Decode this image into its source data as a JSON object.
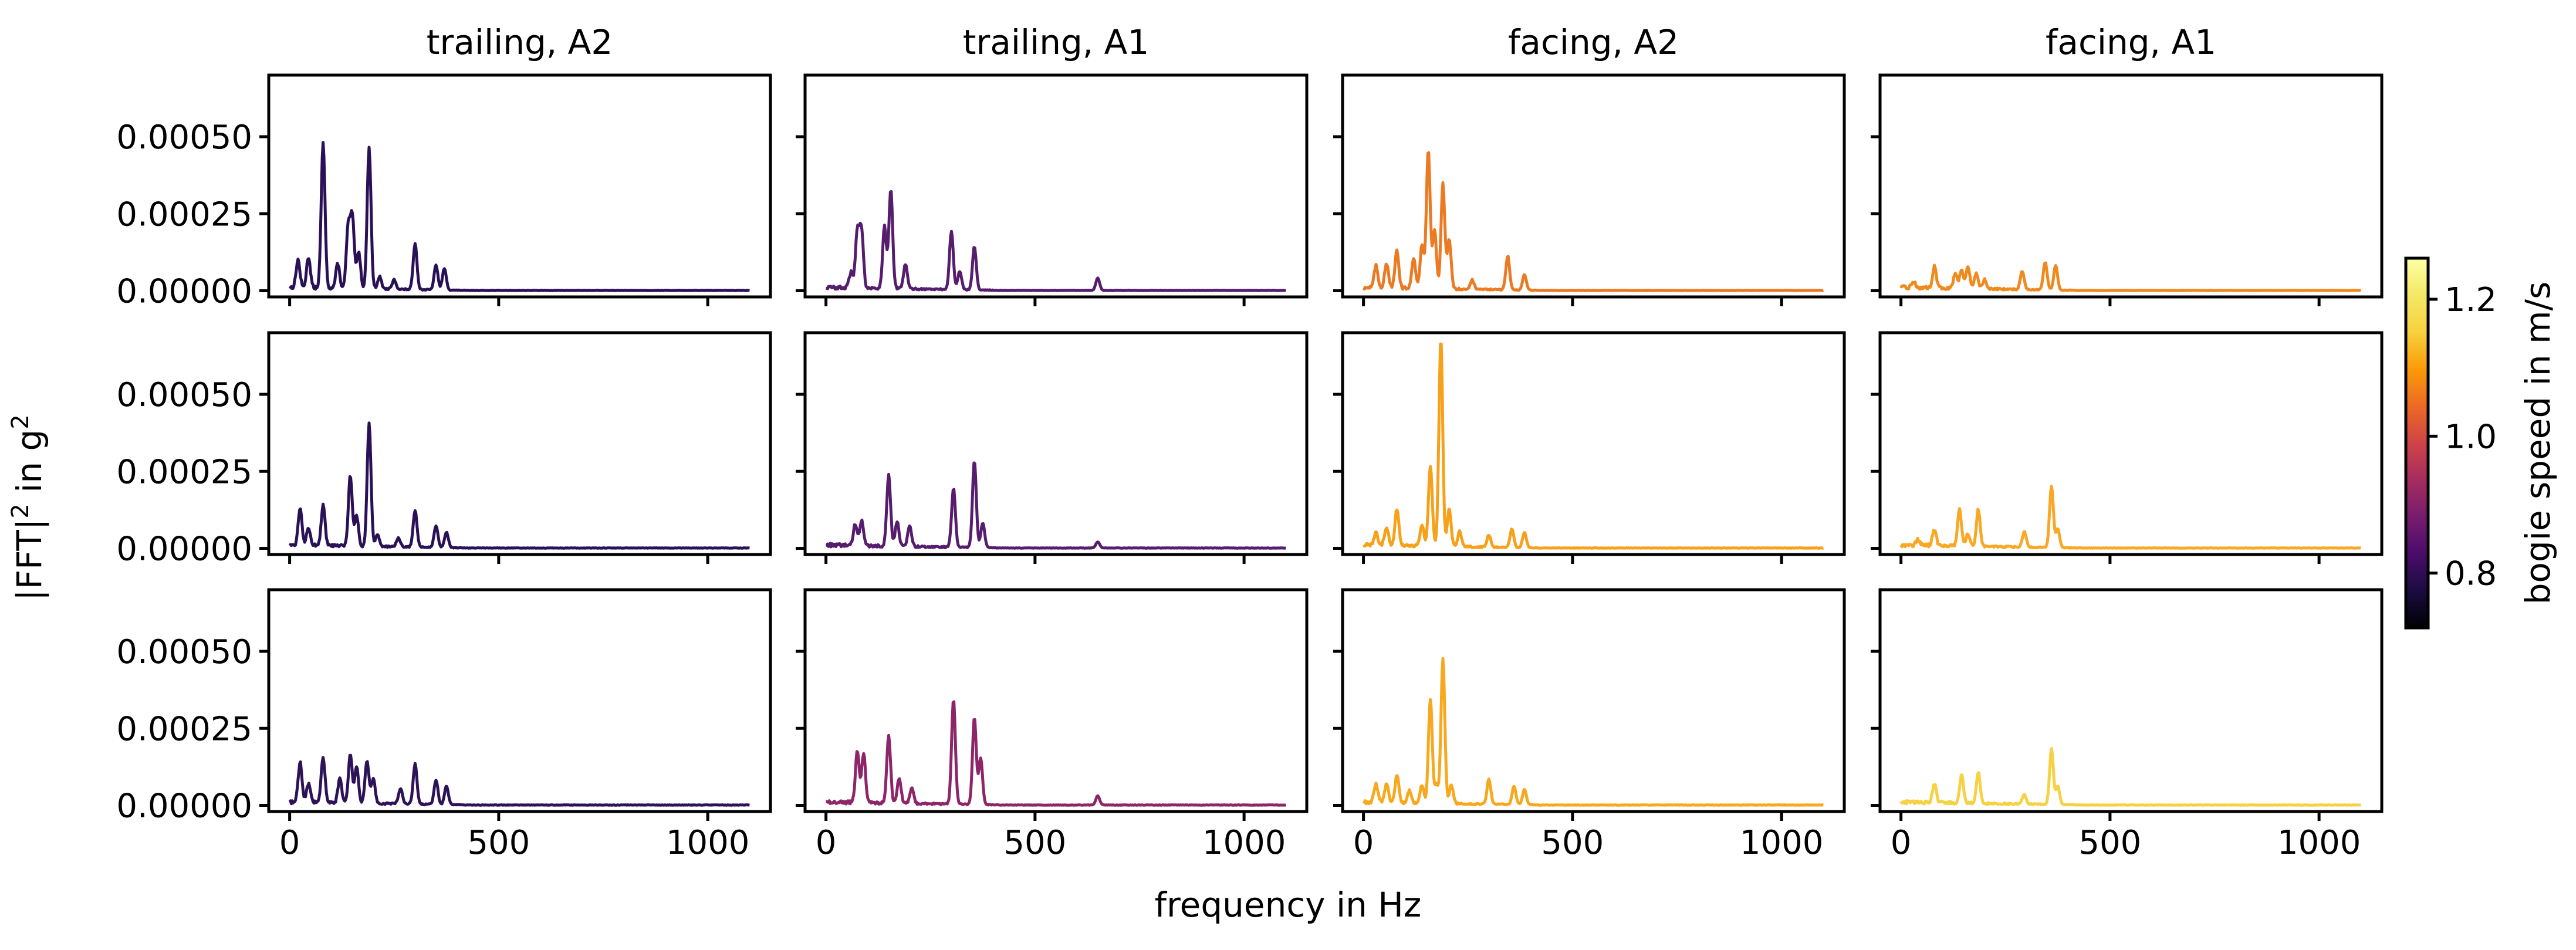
{
  "chart_data": {
    "type": "line",
    "layout": "3 rows x 4 columns of small-multiple spectra",
    "columns": [
      "trailing, A2",
      "trailing, A1",
      "facing, A2",
      "facing, A1"
    ],
    "xlabel": "frequency in Hz",
    "ylabel": "|FFT|² in g²",
    "ylabel_main": "|FFT|",
    "ylabel_sup1": "2",
    "ylabel_mid": " in g",
    "ylabel_sup2": "2",
    "xlim": [
      -50,
      1150
    ],
    "ylim": [
      -2e-05,
      0.0007
    ],
    "xticks": [
      0,
      500,
      1000
    ],
    "xtick_labels": [
      "0",
      "500",
      "1000"
    ],
    "yticks": [
      0,
      0.00025,
      0.0005
    ],
    "ytick_labels": [
      "0.00000",
      "0.00025",
      "0.00050"
    ],
    "colorbar": {
      "label": "bogie speed in m/s",
      "colormap": "inferno",
      "range": [
        0.72,
        1.26
      ],
      "ticks": [
        0.8,
        1.0,
        1.2
      ],
      "tick_labels": [
        "0.8",
        "1.0",
        "1.2"
      ]
    },
    "panels": [
      {
        "row": 0,
        "col": 0,
        "speed": 0.78,
        "color": "#2a1157",
        "peaks": [
          [
            20,
            9e-05
          ],
          [
            45,
            0.0001
          ],
          [
            80,
            0.00047
          ],
          [
            115,
            8e-05
          ],
          [
            140,
            0.0002
          ],
          [
            150,
            0.00023
          ],
          [
            165,
            0.00012
          ],
          [
            190,
            0.00046
          ],
          [
            215,
            4e-05
          ],
          [
            250,
            3e-05
          ],
          [
            300,
            0.00015
          ],
          [
            350,
            8e-05
          ],
          [
            370,
            7e-05
          ]
        ]
      },
      {
        "row": 0,
        "col": 1,
        "speed": 0.86,
        "color": "#561c6d",
        "peaks": [
          [
            60,
            5e-05
          ],
          [
            75,
            0.00018
          ],
          [
            85,
            0.00019
          ],
          [
            140,
            0.0002
          ],
          [
            155,
            0.00032
          ],
          [
            190,
            8e-05
          ],
          [
            300,
            0.00019
          ],
          [
            320,
            6e-05
          ],
          [
            355,
            0.00014
          ],
          [
            650,
            4e-05
          ]
        ]
      },
      {
        "row": 0,
        "col": 2,
        "speed": 1.08,
        "color": "#ec7a22",
        "peaks": [
          [
            30,
            7e-05
          ],
          [
            55,
            8e-05
          ],
          [
            80,
            0.00012
          ],
          [
            120,
            0.0001
          ],
          [
            140,
            0.00014
          ],
          [
            155,
            0.00045
          ],
          [
            170,
            0.00019
          ],
          [
            190,
            0.00034
          ],
          [
            205,
            0.00016
          ],
          [
            260,
            3e-05
          ],
          [
            345,
            0.00011
          ],
          [
            385,
            5e-05
          ]
        ]
      },
      {
        "row": 0,
        "col": 3,
        "speed": 1.12,
        "color": "#f08a1d",
        "peaks": [
          [
            30,
            2e-05
          ],
          [
            80,
            7e-05
          ],
          [
            130,
            5e-05
          ],
          [
            145,
            6e-05
          ],
          [
            160,
            7e-05
          ],
          [
            180,
            5e-05
          ],
          [
            200,
            3e-05
          ],
          [
            290,
            6e-05
          ],
          [
            345,
            9e-05
          ],
          [
            370,
            8e-05
          ]
        ]
      },
      {
        "row": 1,
        "col": 0,
        "speed": 0.78,
        "color": "#2a1157",
        "peaks": [
          [
            25,
            0.00012
          ],
          [
            45,
            6e-05
          ],
          [
            80,
            0.00013
          ],
          [
            145,
            0.00023
          ],
          [
            160,
            0.0001
          ],
          [
            190,
            0.0004
          ],
          [
            210,
            4e-05
          ],
          [
            260,
            3e-05
          ],
          [
            300,
            0.00012
          ],
          [
            350,
            7e-05
          ],
          [
            375,
            5e-05
          ]
        ]
      },
      {
        "row": 1,
        "col": 1,
        "speed": 0.86,
        "color": "#561c6d",
        "peaks": [
          [
            70,
            7e-05
          ],
          [
            85,
            8e-05
          ],
          [
            150,
            0.00023
          ],
          [
            170,
            8e-05
          ],
          [
            200,
            7e-05
          ],
          [
            305,
            0.00019
          ],
          [
            355,
            0.00028
          ],
          [
            375,
            8e-05
          ],
          [
            650,
            2e-05
          ]
        ]
      },
      {
        "row": 1,
        "col": 2,
        "speed": 1.16,
        "color": "#f7a11a",
        "peaks": [
          [
            30,
            4e-05
          ],
          [
            55,
            6e-05
          ],
          [
            80,
            0.00012
          ],
          [
            140,
            7e-05
          ],
          [
            160,
            0.00026
          ],
          [
            185,
            0.00067
          ],
          [
            205,
            0.00012
          ],
          [
            230,
            5e-05
          ],
          [
            300,
            4e-05
          ],
          [
            355,
            6e-05
          ],
          [
            385,
            5e-05
          ]
        ]
      },
      {
        "row": 1,
        "col": 3,
        "speed": 1.18,
        "color": "#f9a825",
        "peaks": [
          [
            40,
            2e-05
          ],
          [
            80,
            5e-05
          ],
          [
            140,
            0.00012
          ],
          [
            160,
            4e-05
          ],
          [
            185,
            0.00012
          ],
          [
            295,
            5e-05
          ],
          [
            360,
            0.0002
          ],
          [
            375,
            6e-05
          ]
        ]
      },
      {
        "row": 2,
        "col": 0,
        "speed": 0.78,
        "color": "#2e1258",
        "peaks": [
          [
            25,
            0.00013
          ],
          [
            45,
            6e-05
          ],
          [
            80,
            0.00015
          ],
          [
            120,
            8e-05
          ],
          [
            145,
            0.00016
          ],
          [
            160,
            0.00012
          ],
          [
            185,
            0.00014
          ],
          [
            200,
            8e-05
          ],
          [
            265,
            5e-05
          ],
          [
            300,
            0.00013
          ],
          [
            350,
            8e-05
          ],
          [
            375,
            6e-05
          ]
        ]
      },
      {
        "row": 2,
        "col": 1,
        "speed": 0.96,
        "color": "#8d2669",
        "peaks": [
          [
            75,
            0.00017
          ],
          [
            90,
            0.00016
          ],
          [
            150,
            0.00022
          ],
          [
            175,
            8e-05
          ],
          [
            205,
            5e-05
          ],
          [
            305,
            0.00034
          ],
          [
            355,
            0.00028
          ],
          [
            370,
            0.00015
          ],
          [
            650,
            3e-05
          ]
        ]
      },
      {
        "row": 2,
        "col": 2,
        "speed": 1.18,
        "color": "#f8a81e",
        "peaks": [
          [
            30,
            6e-05
          ],
          [
            55,
            6e-05
          ],
          [
            80,
            9e-05
          ],
          [
            110,
            4e-05
          ],
          [
            140,
            6e-05
          ],
          [
            160,
            0.00034
          ],
          [
            175,
            6e-05
          ],
          [
            190,
            0.00047
          ],
          [
            210,
            6e-05
          ],
          [
            300,
            8e-05
          ],
          [
            360,
            6e-05
          ],
          [
            385,
            5e-05
          ]
        ]
      },
      {
        "row": 2,
        "col": 3,
        "speed": 1.22,
        "color": "#f6d142",
        "peaks": [
          [
            80,
            6e-05
          ],
          [
            145,
            9e-05
          ],
          [
            185,
            0.0001
          ],
          [
            295,
            3e-05
          ],
          [
            360,
            0.00018
          ],
          [
            375,
            6e-05
          ]
        ]
      }
    ]
  }
}
